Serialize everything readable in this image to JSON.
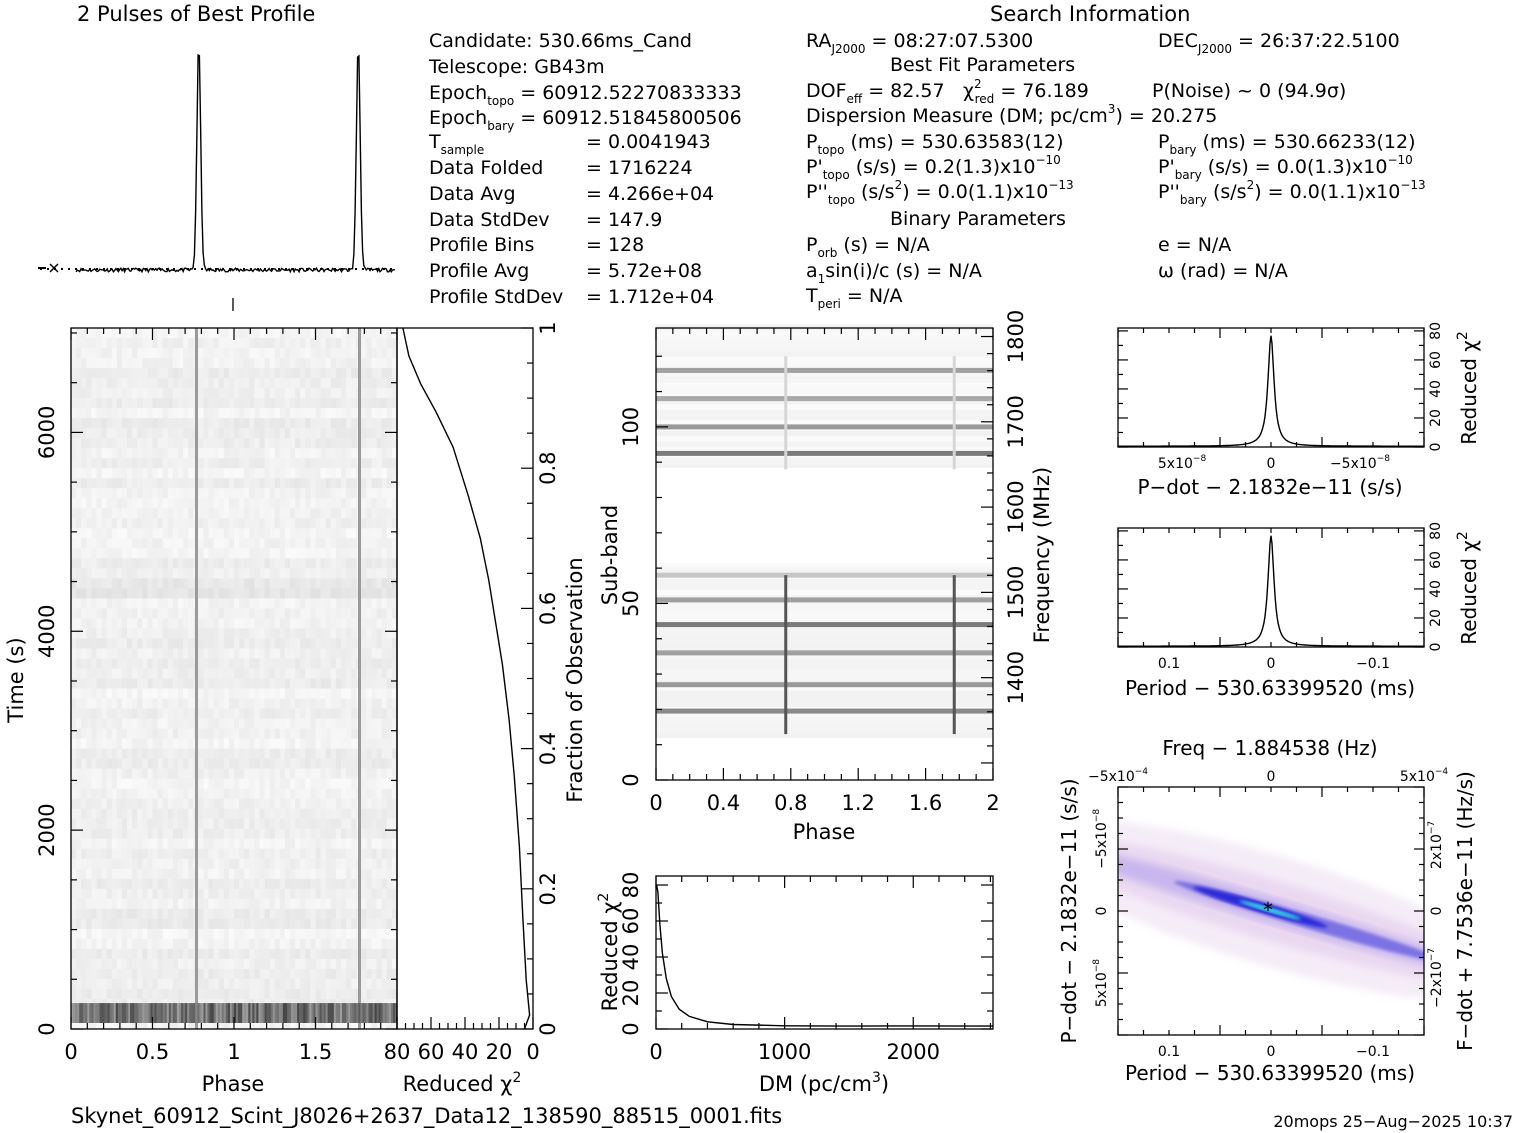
{
  "header": {
    "profile_title": "2 Pulses of Best Profile",
    "search_title": "Search Information",
    "best_fit_title": "Best Fit Parameters",
    "binary_title": "Binary Parameters"
  },
  "candidate_info": {
    "candidate": "Candidate:  530.66ms_Cand",
    "telescope": "Telescope:  GB43m",
    "epoch_topo_label": "Epoch",
    "epoch_topo_sub": "topo",
    "epoch_topo_value": " = 60912.52270833333",
    "epoch_bary_label": "Epoch",
    "epoch_bary_sub": "bary",
    "epoch_bary_value": " = 60912.51845800506",
    "tsample_label": "T",
    "tsample_sub": "sample",
    "tsample_value": "=   0.0041943",
    "data_folded_label": "Data Folded",
    "data_folded_value": "=   1716224",
    "data_avg_label": "Data Avg",
    "data_avg_value": "=   4.266e+04",
    "data_stddev_label": "Data StdDev",
    "data_stddev_value": "=   147.9",
    "profile_bins_label": "Profile Bins",
    "profile_bins_value": "=   128",
    "profile_avg_label": "Profile Avg",
    "profile_avg_value": "=   5.72e+08",
    "profile_stddev_label": "Profile StdDev",
    "profile_stddev_value": "=   1.712e+04"
  },
  "search_info": {
    "ra_label": "RA",
    "ra_sub": "J2000",
    "ra_value": " = 08:27:07.5300",
    "dec_label": "DEC",
    "dec_sub": "J2000",
    "dec_value": " = 26:37:22.5100",
    "dof_label": "DOF",
    "dof_sub": "eff",
    "dof_value": " = 82.57",
    "chi_label": "χ",
    "chi_sup": "2",
    "chi_sub": "red",
    "chi_value": " = 76.189",
    "pnoise": "P(Noise) ~ 0    (94.9σ)",
    "dm_text": "Dispersion Measure (DM; pc/cm",
    "dm_sup": "3",
    "dm_value": ") = 20.275",
    "ptopo_label": "P",
    "ptopo_sub": "topo",
    "ptopo_value": " (ms) =  530.63583(12)",
    "pbary_label": "P",
    "pbary_sub": "bary",
    "pbary_value": " (ms) =  530.66233(12)",
    "pdtopo_label": "P'",
    "pdtopo_sub": "topo",
    "pdtopo_value": " (s/s) =  0.2(1.3)x10",
    "pdtopo_exp": "−10",
    "pdbary_label": "P'",
    "pdbary_sub": "bary",
    "pdbary_value": " (s/s) = 0.0(1.3)x10",
    "pdbary_exp": "−10",
    "pddtopo_label": "P''",
    "pddtopo_sub": "topo",
    "pddtopo_value": " (s/s",
    "pddtopo_sup": "2",
    "pddtopo_value2": ") = 0.0(1.1)x10",
    "pddtopo_exp": "−13",
    "pddbary_label": "P''",
    "pddbary_sub": "bary",
    "pddbary_value": " (s/s",
    "pddbary_sup": "2",
    "pddbary_value2": ") = 0.0(1.1)x10",
    "pddbary_exp": "−13",
    "porb_label": "P",
    "porb_sub": "orb",
    "porb_value": " (s) = N/A",
    "e_value": "e = N/A",
    "a1_label": "a",
    "a1_sub": "1",
    "a1_value": "sin(i)/c (s) = N/A",
    "omega_value": "ω (rad) = N/A",
    "tperi_label": "T",
    "tperi_sub": "peri",
    "tperi_value": " = N/A"
  },
  "footer": {
    "filename": "Skynet_60912_Scint_J8026+2637_Data12_138590_88515_0001.fits",
    "stamp": "20mops 25−Aug−2025 10:37"
  },
  "colors": {
    "foreground": "#000000",
    "background": "#ffffff",
    "ppdot_low": "#f3e8f6",
    "ppdot_mid": "#6f62e8",
    "ppdot_high": "#1a1fd8",
    "ppdot_peak": "#2fd7e6"
  },
  "chart_data": [
    {
      "type": "line",
      "title": "2 Pulses of Best Profile",
      "x_range": [
        0,
        2
      ],
      "pulse_phases": [
        0.77,
        1.77
      ],
      "pulse_width": 0.012,
      "y_range": [
        0,
        1
      ],
      "baseline": 0.05,
      "grid": false
    },
    {
      "type": "heatmap",
      "xlabel": "Phase",
      "ylabel": "Time (s)",
      "xlim": [
        0,
        2
      ],
      "ylim": [
        0,
        7050
      ],
      "xticks": [
        "0",
        "0.5",
        "1",
        "1.5"
      ],
      "yticks": [
        "0",
        "2000",
        "4000",
        "6000"
      ],
      "pulse_phases": [
        0.77,
        1.77
      ],
      "bright_band_time": [
        60,
        260
      ]
    },
    {
      "type": "line",
      "xlabel": "Reduced χ",
      "xlabel_sup": "2",
      "ylabel": "Fraction of Observation",
      "xlim": [
        80,
        0
      ],
      "ylim": [
        0,
        1
      ],
      "xticks": [
        "80",
        "60",
        "40",
        "20",
        "0"
      ],
      "yticks": [
        "0",
        "0.2",
        "0.4",
        "0.6",
        "0.8",
        "1"
      ],
      "points": [
        [
          76.5,
          1.0
        ],
        [
          73,
          0.96
        ],
        [
          66,
          0.92
        ],
        [
          57,
          0.88
        ],
        [
          47,
          0.83
        ],
        [
          38,
          0.76
        ],
        [
          31,
          0.7
        ],
        [
          26,
          0.64
        ],
        [
          22,
          0.58
        ],
        [
          18,
          0.52
        ],
        [
          14,
          0.44
        ],
        [
          11,
          0.36
        ],
        [
          8,
          0.26
        ],
        [
          6,
          0.16
        ],
        [
          4,
          0.07
        ],
        [
          2,
          0.02
        ],
        [
          5,
          0.0
        ]
      ]
    },
    {
      "type": "heatmap",
      "xlabel": "Phase",
      "ylabel": "Sub-band",
      "ylabel_right": "Frequency (MHz)",
      "xlim": [
        0,
        2
      ],
      "ylim": [
        0,
        128
      ],
      "xticks": [
        "0",
        "0.4",
        "0.8",
        "1.2",
        "1.6",
        "2"
      ],
      "yticks": [
        "0",
        "50",
        "100"
      ],
      "right_yticks": [
        "1400",
        "1500",
        "1600",
        "1700",
        "1800"
      ],
      "bands": [
        {
          "subband": 19.5,
          "strength": 0.75
        },
        {
          "subband": 27,
          "strength": 0.65
        },
        {
          "subband": 36,
          "strength": 0.6
        },
        {
          "subband": 44,
          "strength": 0.85
        },
        {
          "subband": 51,
          "strength": 0.6
        },
        {
          "subband": 58,
          "strength": 0.35
        },
        {
          "subband": 92.5,
          "strength": 0.85
        },
        {
          "subband": 100,
          "strength": 0.65
        },
        {
          "subband": 108,
          "strength": 0.55
        },
        {
          "subband": 116,
          "strength": 0.6
        }
      ],
      "empty_range": [
        60,
        88
      ]
    },
    {
      "type": "line",
      "xlabel": "DM (pc/cm",
      "xlabel_sup": "3",
      "xlabel_end": ")",
      "ylabel": "Reduced χ",
      "ylabel_sup": "2",
      "xlim": [
        0,
        2620
      ],
      "ylim": [
        0,
        85
      ],
      "xticks": [
        "0",
        "1000",
        "2000"
      ],
      "yticks": [
        "0",
        "20",
        "40",
        "60",
        "80"
      ],
      "points": [
        [
          5,
          80
        ],
        [
          15,
          76
        ],
        [
          30,
          58
        ],
        [
          50,
          42
        ],
        [
          80,
          28
        ],
        [
          120,
          18
        ],
        [
          180,
          11
        ],
        [
          260,
          7
        ],
        [
          400,
          4
        ],
        [
          600,
          2.5
        ],
        [
          1000,
          1.8
        ],
        [
          1500,
          1.6
        ],
        [
          2000,
          1.7
        ],
        [
          2620,
          1.6
        ]
      ]
    },
    {
      "type": "line",
      "xlabel": "P−dot − 2.1832e−11 (s/s)",
      "ylabel": "Reduced χ",
      "ylabel_sup": "2",
      "xlim": [
        8.6e-08,
        -8.6e-08
      ],
      "ylim": [
        0,
        82
      ],
      "xticks": [
        "5x10",
        "0",
        "−5x10"
      ],
      "xtick_exp": "−8",
      "yticks": [
        "0",
        "20",
        "40",
        "60",
        "80"
      ],
      "peak": 76.2,
      "peak_x": 0
    },
    {
      "type": "line",
      "xlabel": "Period − 530.63399520 (ms)",
      "ylabel": "Reduced χ",
      "ylabel_sup": "2",
      "xlim": [
        0.15,
        -0.15
      ],
      "ylim": [
        0,
        82
      ],
      "xticks": [
        "0.1",
        "0",
        "−0.1"
      ],
      "yticks": [
        "0",
        "20",
        "40",
        "60",
        "80"
      ],
      "peak": 76.2,
      "peak_x": 0
    },
    {
      "type": "heatmap",
      "title": "Freq − 1.884538 (Hz)",
      "xlabel": "Period − 530.63399520 (ms)",
      "ylabel": "P−dot − 2.1832e−11 (s/s)",
      "ylabel_right": "F−dot + 7.7536e−11 (Hz/s)",
      "xlim": [
        0.15,
        -0.15
      ],
      "ylim": [
        8.6e-08,
        -8.6e-08
      ],
      "xticks": [
        "0.1",
        "0",
        "−0.1"
      ],
      "top_xticks": [
        "−5x10",
        "0",
        "5x10"
      ],
      "top_xtick_exp": "−4",
      "yticks": [
        "−5x10",
        "0",
        "5x10"
      ],
      "ytick_exp": "−8",
      "right_yticks": [
        "2x10",
        "0",
        "−2x10"
      ],
      "right_ytick_exp": "−7",
      "best": [
        0,
        0
      ]
    }
  ]
}
